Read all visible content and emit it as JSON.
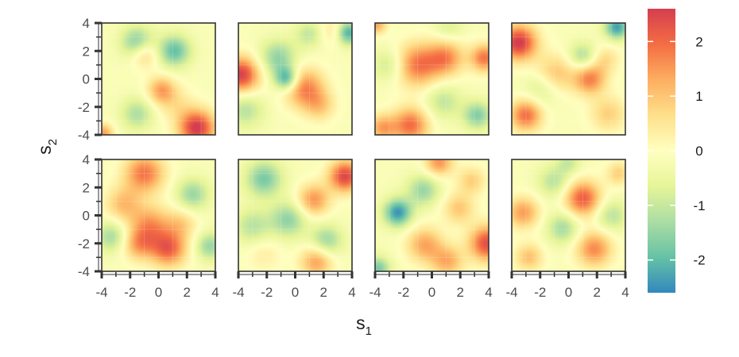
{
  "chart_data": {
    "type": "heatmap",
    "title": "",
    "facets": {
      "rows": 2,
      "cols": 4
    },
    "x_axis": {
      "title_main": "s",
      "title_sub": "1",
      "lim": [
        -4,
        4
      ],
      "ticks": [
        "-4",
        "-2",
        "0",
        "2",
        "4"
      ]
    },
    "y_axis": {
      "title_main": "s",
      "title_sub": "2",
      "lim": [
        -4,
        4
      ],
      "ticks": [
        "-4",
        "-2",
        "0",
        "2",
        "4"
      ]
    },
    "colorbar": {
      "range": [
        -2.6,
        2.6
      ],
      "ticks": [
        "2",
        "1",
        "0",
        "-1",
        "-2"
      ],
      "palette": [
        "#3288bd",
        "#66c2a5",
        "#abdda4",
        "#e6f598",
        "#ffffbf",
        "#fee08b",
        "#fdae61",
        "#f46d43",
        "#d53e4f"
      ]
    },
    "panels": [
      {
        "blobs": [
          [
            2.7,
            -3.5,
            2.8,
            0.9
          ],
          [
            -1.5,
            2.6,
            -1.6,
            0.8
          ],
          [
            1.1,
            2.0,
            -1.8,
            0.8
          ],
          [
            0.2,
            -0.8,
            1.5,
            0.7
          ],
          [
            -1.0,
            1.8,
            1.2,
            0.7
          ],
          [
            -1.5,
            -2.5,
            -1.1,
            0.8
          ],
          [
            1.2,
            -1.8,
            0.6,
            0.9
          ],
          [
            -3.9,
            -3.9,
            1.6,
            0.5
          ]
        ]
      },
      {
        "blobs": [
          [
            -3.8,
            0.3,
            2.7,
            0.9
          ],
          [
            -3.5,
            -2.2,
            -1.0,
            0.9
          ],
          [
            -1.2,
            1.5,
            -1.4,
            0.9
          ],
          [
            -0.6,
            0.0,
            -2.2,
            0.6
          ],
          [
            0.6,
            -0.6,
            1.9,
            1.0
          ],
          [
            1.7,
            -1.9,
            1.0,
            0.8
          ],
          [
            3.7,
            3.3,
            -2.2,
            0.6
          ],
          [
            2.7,
            3.4,
            0.8,
            0.7
          ],
          [
            1.0,
            3.2,
            -0.9,
            0.7
          ]
        ]
      },
      {
        "blobs": [
          [
            -1.0,
            1.0,
            2.0,
            1.1
          ],
          [
            1.0,
            1.5,
            1.7,
            0.9
          ],
          [
            3.7,
            1.5,
            2.0,
            0.7
          ],
          [
            -1.5,
            -3.3,
            2.1,
            0.9
          ],
          [
            -3.5,
            -3.5,
            1.5,
            0.7
          ],
          [
            -3.0,
            1.0,
            -0.9,
            0.8
          ],
          [
            0.8,
            -1.6,
            -0.9,
            0.9
          ],
          [
            3.2,
            -2.6,
            -1.5,
            0.7
          ],
          [
            -3.9,
            3.9,
            1.5,
            0.5
          ],
          [
            1.2,
            3.7,
            -0.6,
            0.7
          ]
        ]
      },
      {
        "blobs": [
          [
            -3.5,
            2.6,
            2.8,
            0.9
          ],
          [
            -3.0,
            -2.6,
            2.1,
            0.8
          ],
          [
            -1.0,
            0.3,
            1.3,
            1.0
          ],
          [
            1.5,
            0.0,
            1.9,
            0.8
          ],
          [
            2.8,
            -2.5,
            1.0,
            0.9
          ],
          [
            3.4,
            3.7,
            -2.2,
            0.6
          ],
          [
            1.0,
            1.6,
            -1.2,
            0.7
          ],
          [
            -1.8,
            -0.6,
            -0.9,
            0.9
          ],
          [
            2.6,
            1.4,
            0.8,
            0.7
          ]
        ]
      },
      {
        "blobs": [
          [
            -1.0,
            3.0,
            2.0,
            1.0
          ],
          [
            -0.6,
            -0.7,
            1.6,
            1.0
          ],
          [
            0.7,
            -2.4,
            2.2,
            0.9
          ],
          [
            -2.5,
            0.8,
            1.2,
            0.9
          ],
          [
            -3.3,
            -1.5,
            -1.2,
            0.8
          ],
          [
            2.4,
            1.5,
            -1.3,
            0.8
          ],
          [
            3.6,
            -2.2,
            -1.3,
            0.7
          ],
          [
            -1.4,
            -2.1,
            1.4,
            0.8
          ],
          [
            1.6,
            -0.6,
            0.9,
            0.8
          ]
        ]
      },
      {
        "blobs": [
          [
            3.5,
            2.8,
            2.6,
            0.8
          ],
          [
            1.3,
            1.1,
            1.7,
            0.8
          ],
          [
            -2.2,
            2.6,
            -1.6,
            0.9
          ],
          [
            -0.5,
            -0.3,
            -1.4,
            0.9
          ],
          [
            2.2,
            -1.8,
            -1.3,
            0.8
          ],
          [
            -3.0,
            -0.8,
            -1.0,
            0.9
          ],
          [
            1.5,
            -3.3,
            1.6,
            0.8
          ],
          [
            -2.2,
            -2.8,
            0.5,
            0.9
          ]
        ]
      },
      {
        "blobs": [
          [
            3.9,
            -2.0,
            2.5,
            0.9
          ],
          [
            -2.4,
            0.2,
            -2.3,
            0.7
          ],
          [
            -0.6,
            1.8,
            -1.3,
            0.8
          ],
          [
            0.5,
            3.8,
            1.7,
            0.7
          ],
          [
            -0.5,
            -2.1,
            1.5,
            0.9
          ],
          [
            1.9,
            0.5,
            1.1,
            0.8
          ],
          [
            2.8,
            2.5,
            1.0,
            0.7
          ],
          [
            -3.8,
            -3.8,
            -1.6,
            0.6
          ],
          [
            1.1,
            -3.3,
            1.4,
            0.8
          ]
        ]
      },
      {
        "blobs": [
          [
            1.0,
            1.2,
            2.3,
            0.9
          ],
          [
            -3.2,
            0.2,
            1.6,
            0.8
          ],
          [
            1.8,
            -2.4,
            1.8,
            0.9
          ],
          [
            -1.0,
            2.4,
            -1.0,
            0.8
          ],
          [
            -0.4,
            -0.9,
            -1.2,
            0.8
          ],
          [
            3.0,
            0.0,
            -1.0,
            0.8
          ],
          [
            3.5,
            3.0,
            1.0,
            0.6
          ],
          [
            -2.8,
            -3.0,
            1.2,
            0.7
          ],
          [
            0.0,
            3.8,
            -0.8,
            0.6
          ]
        ]
      }
    ]
  }
}
